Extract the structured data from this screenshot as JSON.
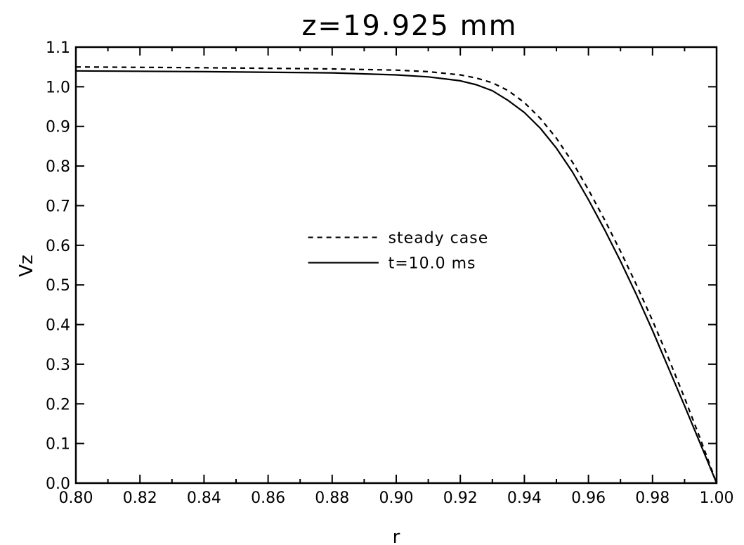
{
  "chart_data": {
    "type": "line",
    "title": "z=19.925 mm",
    "xlabel": "r",
    "ylabel": "Vz",
    "xlim": [
      0.8,
      1.0
    ],
    "ylim": [
      0.0,
      1.1
    ],
    "xticks": [
      "0.80",
      "0.82",
      "0.84",
      "0.86",
      "0.88",
      "0.90",
      "0.92",
      "0.94",
      "0.96",
      "0.98",
      "1.00"
    ],
    "yticks": [
      "0.0",
      "0.1",
      "0.2",
      "0.3",
      "0.4",
      "0.5",
      "0.6",
      "0.7",
      "0.8",
      "0.9",
      "1.0",
      "1.1"
    ],
    "grid": false,
    "legend_position": "center",
    "series": [
      {
        "name": "steady case",
        "style": "dashed",
        "color": "#000000",
        "x": [
          0.8,
          0.84,
          0.88,
          0.9,
          0.91,
          0.92,
          0.925,
          0.93,
          0.935,
          0.94,
          0.945,
          0.95,
          0.955,
          0.96,
          0.965,
          0.97,
          0.975,
          0.98,
          0.985,
          0.99,
          0.995,
          1.0
        ],
        "y": [
          1.05,
          1.048,
          1.045,
          1.042,
          1.038,
          1.03,
          1.022,
          1.01,
          0.99,
          0.96,
          0.92,
          0.87,
          0.81,
          0.74,
          0.665,
          0.585,
          0.5,
          0.41,
          0.315,
          0.215,
          0.11,
          0.0
        ]
      },
      {
        "name": "t=10.0 ms",
        "style": "solid",
        "color": "#000000",
        "x": [
          0.8,
          0.84,
          0.88,
          0.9,
          0.91,
          0.92,
          0.925,
          0.93,
          0.935,
          0.94,
          0.945,
          0.95,
          0.955,
          0.96,
          0.965,
          0.97,
          0.975,
          0.98,
          0.985,
          0.99,
          0.995,
          1.0
        ],
        "y": [
          1.04,
          1.038,
          1.035,
          1.03,
          1.025,
          1.015,
          1.005,
          0.99,
          0.965,
          0.935,
          0.895,
          0.845,
          0.785,
          0.715,
          0.64,
          0.56,
          0.475,
          0.385,
          0.29,
          0.195,
          0.098,
          0.0
        ]
      }
    ]
  }
}
